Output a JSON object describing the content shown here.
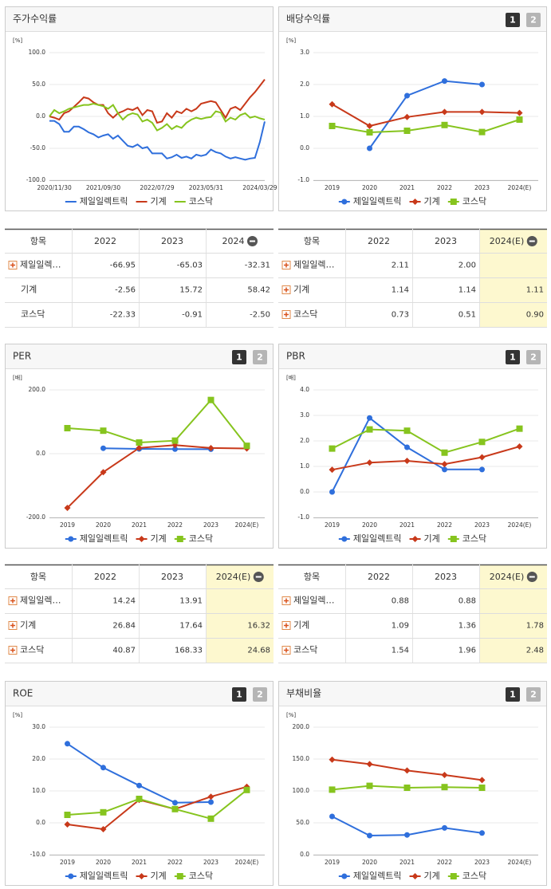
{
  "chart_data": [
    {
      "type": "line",
      "title": "주가수익률",
      "unit": "[%]",
      "markers": false,
      "categories": [
        null,
        "2020/11/30",
        null,
        null,
        null,
        null,
        null,
        null,
        null,
        null,
        null,
        "2021/09/30",
        null,
        null,
        null,
        null,
        null,
        null,
        null,
        null,
        null,
        null,
        "2022/07/29",
        null,
        null,
        null,
        null,
        null,
        null,
        null,
        null,
        null,
        "2023/05/31",
        null,
        null,
        null,
        null,
        null,
        null,
        null,
        null,
        null,
        null,
        "2024/03/29",
        null
      ],
      "ylim": [
        -100,
        100
      ],
      "yticks": [
        {
          "value": -100,
          "label": "-100.0"
        },
        {
          "value": -50,
          "label": "-50.0"
        },
        {
          "value": 0,
          "label": "0.0"
        },
        {
          "value": 50,
          "label": "50.0"
        },
        {
          "value": 100,
          "label": "100.0"
        }
      ],
      "series": [
        {
          "name": "제일일렉트릭",
          "color": "#2f6fdc",
          "values": [
            -7,
            -7,
            -12,
            -24,
            -24,
            -16,
            -16,
            -20,
            -25,
            -28,
            -33,
            -30,
            -28,
            -35,
            -30,
            -38,
            -46,
            -48,
            -44,
            -50,
            -48,
            -58,
            -58,
            -58,
            -66,
            -64,
            -60,
            -65,
            -63,
            -66,
            -60,
            -62,
            -60,
            -52,
            -56,
            -58,
            -63,
            -66,
            -64,
            -66,
            -68,
            -66,
            -65,
            -40,
            -8
          ]
        },
        {
          "name": "기계",
          "color": "#c8391a",
          "values": [
            0,
            -2,
            -5,
            5,
            8,
            15,
            22,
            30,
            28,
            22,
            18,
            18,
            5,
            -2,
            5,
            8,
            12,
            10,
            14,
            2,
            10,
            8,
            -10,
            -8,
            5,
            -2,
            8,
            5,
            12,
            8,
            12,
            20,
            22,
            24,
            22,
            10,
            -2,
            12,
            15,
            10,
            20,
            30,
            38,
            48,
            58
          ]
        },
        {
          "name": "코스닥",
          "color": "#86c41e",
          "values": [
            0,
            10,
            5,
            8,
            12,
            14,
            16,
            18,
            18,
            20,
            18,
            16,
            12,
            18,
            5,
            -5,
            2,
            5,
            3,
            -8,
            -5,
            -10,
            -22,
            -18,
            -12,
            -20,
            -15,
            -18,
            -10,
            -5,
            -2,
            -4,
            -2,
            -1,
            8,
            6,
            -8,
            -2,
            -5,
            2,
            5,
            -2,
            0,
            -3,
            -5
          ]
        }
      ]
    },
    {
      "type": "line",
      "title": "배당수익률",
      "unit": "[%]",
      "markers": true,
      "tabs": [
        "1",
        "2"
      ],
      "categories": [
        "2019",
        "2020",
        "2021",
        "2022",
        "2023",
        "2024(E)"
      ],
      "ylim": [
        -1,
        3
      ],
      "yticks": [
        {
          "value": -1,
          "label": "-1.0"
        },
        {
          "value": 0,
          "label": "0.0"
        },
        {
          "value": 1,
          "label": "1.0"
        },
        {
          "value": 2,
          "label": "2.0"
        },
        {
          "value": 3,
          "label": "3.0"
        }
      ],
      "series": [
        {
          "name": "제일일렉트릭",
          "color": "#2f6fdc",
          "marker": "circle",
          "values": [
            null,
            0,
            1.65,
            2.11,
            2.0,
            null
          ]
        },
        {
          "name": "기계",
          "color": "#c8391a",
          "marker": "diamond",
          "values": [
            1.38,
            0.7,
            0.98,
            1.14,
            1.14,
            1.11
          ]
        },
        {
          "name": "코스닥",
          "color": "#86c41e",
          "marker": "square",
          "values": [
            0.7,
            0.5,
            0.55,
            0.73,
            0.51,
            0.9
          ]
        }
      ]
    },
    {
      "type": "line",
      "title": "PER",
      "unit": "[배]",
      "markers": true,
      "tabs": [
        "1",
        "2"
      ],
      "categories": [
        "2019",
        "2020",
        "2021",
        "2022",
        "2023",
        "2024(E)"
      ],
      "ylim": [
        -200,
        200
      ],
      "yticks": [
        {
          "value": -200,
          "label": "-200.0"
        },
        {
          "value": 0,
          "label": "0.0"
        },
        {
          "value": 200,
          "label": "200.0"
        }
      ],
      "series": [
        {
          "name": "제일일렉트릭",
          "color": "#2f6fdc",
          "marker": "circle",
          "values": [
            null,
            17,
            15,
            14.24,
            13.91,
            null
          ]
        },
        {
          "name": "기계",
          "color": "#c8391a",
          "marker": "diamond",
          "values": [
            -170,
            -58,
            18,
            26.84,
            17.64,
            16.32
          ]
        },
        {
          "name": "코스닥",
          "color": "#86c41e",
          "marker": "square",
          "values": [
            80,
            72,
            35,
            40.87,
            168.33,
            24.68
          ]
        }
      ]
    },
    {
      "type": "line",
      "title": "PBR",
      "unit": "[배]",
      "markers": true,
      "tabs": [
        "1",
        "2"
      ],
      "categories": [
        "2019",
        "2020",
        "2021",
        "2022",
        "2023",
        "2024(E)"
      ],
      "ylim": [
        -1,
        4
      ],
      "yticks": [
        {
          "value": -1,
          "label": "-1.0"
        },
        {
          "value": 0,
          "label": "0.0"
        },
        {
          "value": 1,
          "label": "1.0"
        },
        {
          "value": 2,
          "label": "2.0"
        },
        {
          "value": 3,
          "label": "3.0"
        },
        {
          "value": 4,
          "label": "4.0"
        }
      ],
      "series": [
        {
          "name": "제일일렉트릭",
          "color": "#2f6fdc",
          "marker": "circle",
          "values": [
            0,
            2.9,
            1.75,
            0.88,
            0.88,
            null
          ]
        },
        {
          "name": "기계",
          "color": "#c8391a",
          "marker": "diamond",
          "values": [
            0.87,
            1.15,
            1.22,
            1.09,
            1.36,
            1.78
          ]
        },
        {
          "name": "코스닥",
          "color": "#86c41e",
          "marker": "square",
          "values": [
            1.7,
            2.45,
            2.4,
            1.54,
            1.96,
            2.48
          ]
        }
      ]
    },
    {
      "type": "line",
      "title": "ROE",
      "unit": "[%]",
      "markers": true,
      "tabs": [
        "1",
        "2"
      ],
      "categories": [
        "2019",
        "2020",
        "2021",
        "2022",
        "2023",
        "2024(E)"
      ],
      "ylim": [
        -10,
        30
      ],
      "yticks": [
        {
          "value": -10,
          "label": "-10.0"
        },
        {
          "value": 0,
          "label": "0.0"
        },
        {
          "value": 10,
          "label": "10.0"
        },
        {
          "value": 20,
          "label": "20.0"
        },
        {
          "value": 30,
          "label": "30.0"
        }
      ],
      "series": [
        {
          "name": "제일일렉트릭",
          "color": "#2f6fdc",
          "marker": "circle",
          "values": [
            24.8,
            17.3,
            11.7,
            6.3,
            6.5,
            null
          ]
        },
        {
          "name": "기계",
          "color": "#c8391a",
          "marker": "diamond",
          "values": [
            -0.5,
            -2,
            7.2,
            4.3,
            8.2,
            11.3
          ]
        },
        {
          "name": "코스닥",
          "color": "#86c41e",
          "marker": "square",
          "values": [
            2.5,
            3.3,
            7.5,
            4.3,
            1.3,
            10.3
          ]
        }
      ]
    },
    {
      "type": "line",
      "title": "부채비율",
      "unit": "[%]",
      "markers": true,
      "tabs": [
        "1",
        "2"
      ],
      "categories": [
        "2019",
        "2020",
        "2021",
        "2022",
        "2023",
        "2024(E)"
      ],
      "ylim": [
        0,
        200
      ],
      "yticks": [
        {
          "value": 0,
          "label": "0.0"
        },
        {
          "value": 50,
          "label": "50.0"
        },
        {
          "value": 100,
          "label": "100.0"
        },
        {
          "value": 150,
          "label": "150.0"
        },
        {
          "value": 200,
          "label": "200.0"
        }
      ],
      "series": [
        {
          "name": "제일일렉트릭",
          "color": "#2f6fdc",
          "marker": "circle",
          "values": [
            60,
            30,
            31,
            42,
            34,
            null
          ]
        },
        {
          "name": "기계",
          "color": "#c8391a",
          "marker": "diamond",
          "values": [
            149,
            142,
            132,
            125,
            117,
            null
          ]
        },
        {
          "name": "코스닥",
          "color": "#86c41e",
          "marker": "square",
          "values": [
            102,
            108,
            105,
            106,
            105,
            null
          ]
        }
      ]
    }
  ],
  "tables": [
    {
      "header": [
        "항목",
        "2022",
        "2023",
        "2024"
      ],
      "rows": [
        [
          "제일일렉…",
          "-66.95",
          "-65.03",
          "-32.31"
        ],
        [
          "기계",
          "-2.56",
          "15.72",
          "58.42"
        ],
        [
          "코스닥",
          "-22.33",
          "-0.91",
          "-2.50"
        ]
      ]
    },
    {
      "header": [
        "항목",
        "2022",
        "2023",
        "2024(E)"
      ],
      "rows": [
        [
          "제일일렉…",
          "2.11",
          "2.00",
          null
        ],
        [
          "기계",
          "1.14",
          "1.14",
          "1.11"
        ],
        [
          "코스닥",
          "0.73",
          "0.51",
          "0.90"
        ]
      ]
    },
    {
      "header": [
        "항목",
        "2022",
        "2023",
        "2024(E)"
      ],
      "rows": [
        [
          "제일일렉…",
          "14.24",
          "13.91",
          null
        ],
        [
          "기계",
          "26.84",
          "17.64",
          "16.32"
        ],
        [
          "코스닥",
          "40.87",
          "168.33",
          "24.68"
        ]
      ]
    },
    {
      "header": [
        "항목",
        "2022",
        "2023",
        "2024(E)"
      ],
      "rows": [
        [
          "제일일렉…",
          "0.88",
          "0.88",
          null
        ],
        [
          "기계",
          "1.09",
          "1.36",
          "1.78"
        ],
        [
          "코스닥",
          "1.54",
          "1.96",
          "2.48"
        ]
      ]
    }
  ]
}
